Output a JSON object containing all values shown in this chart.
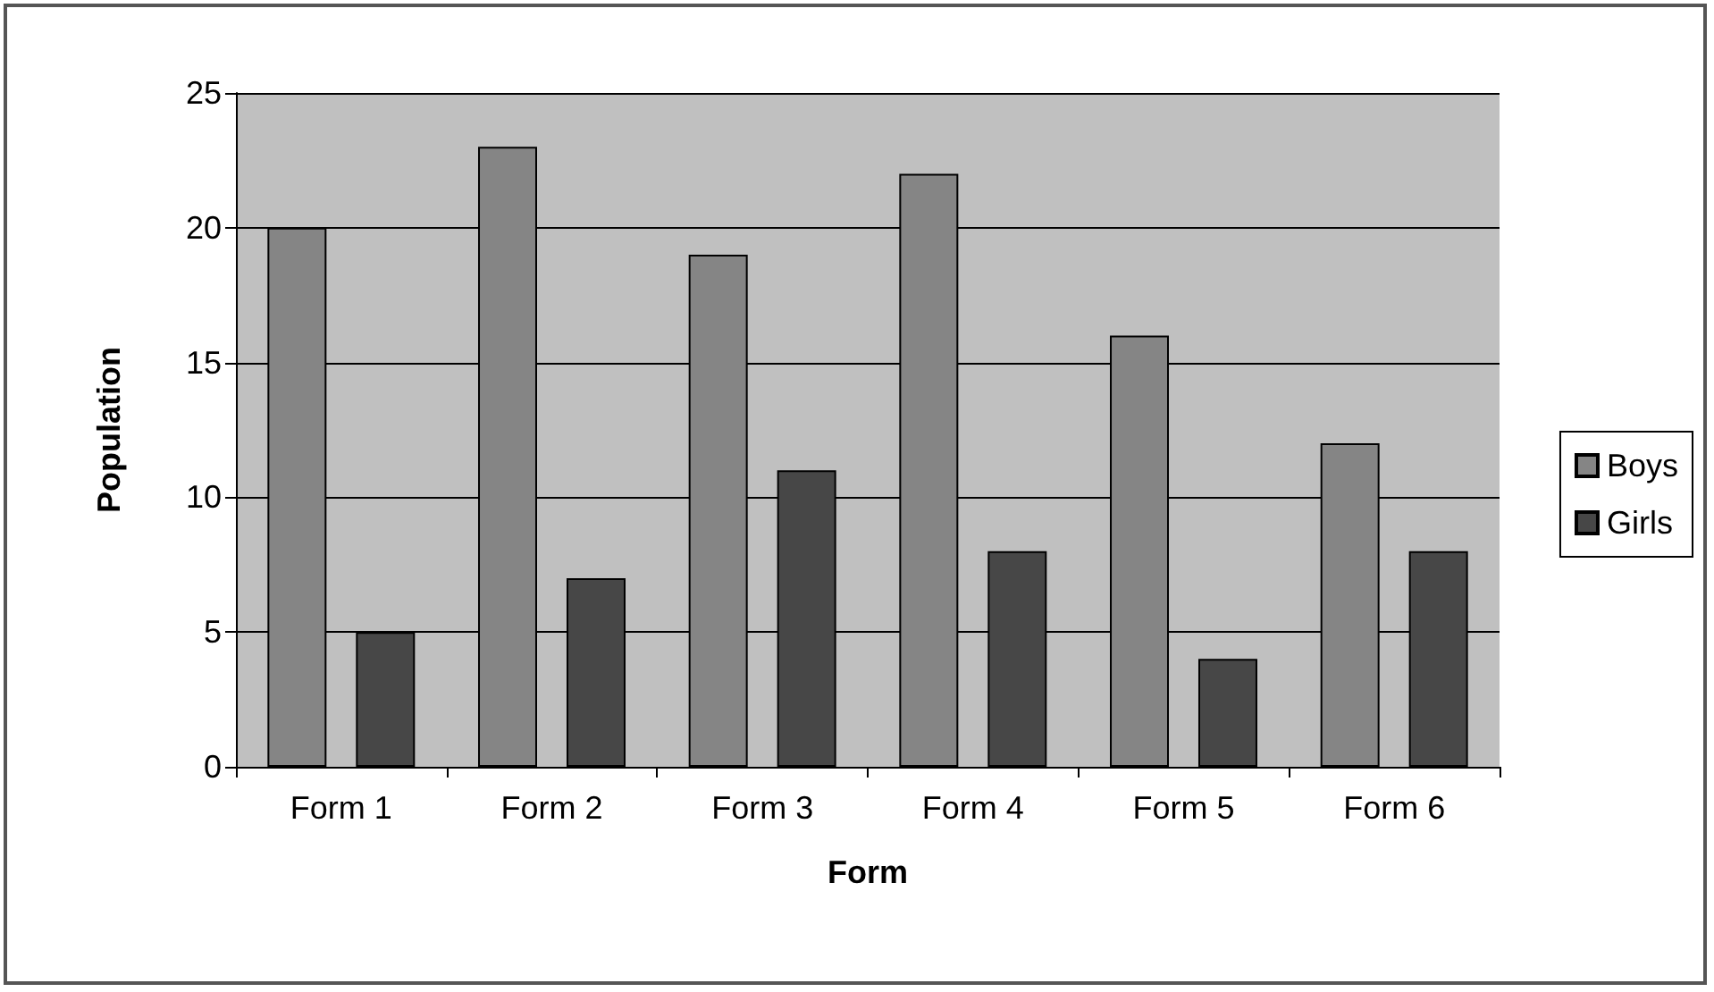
{
  "chart_data": {
    "type": "bar",
    "xlabel": "Form",
    "ylabel": "Population",
    "categories": [
      "Form 1",
      "Form 2",
      "Form 3",
      "Form 4",
      "Form 5",
      "Form 6"
    ],
    "series": [
      {
        "name": "Boys",
        "color": "#858585",
        "values": [
          20,
          23,
          19,
          22,
          16,
          12
        ]
      },
      {
        "name": "Girls",
        "color": "#474747",
        "values": [
          5,
          7,
          11,
          8,
          4,
          8
        ]
      }
    ],
    "ylim": [
      0,
      25
    ],
    "yticks": [
      0,
      5,
      10,
      15,
      20,
      25
    ],
    "grid": "y",
    "legend": "right"
  }
}
